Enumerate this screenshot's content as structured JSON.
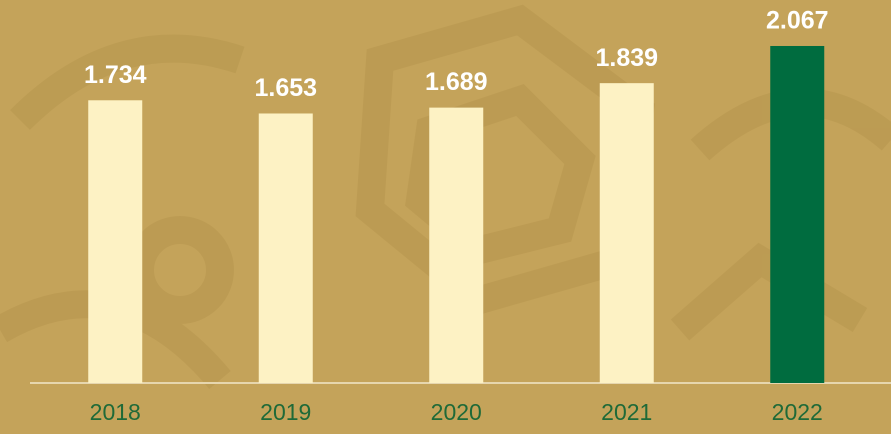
{
  "chart_data": {
    "type": "bar",
    "categories": [
      "2018",
      "2019",
      "2020",
      "2021",
      "2022"
    ],
    "values": [
      1.734,
      1.653,
      1.689,
      1.839,
      2.067
    ],
    "colors": [
      "#fdf2c4",
      "#fdf2c4",
      "#fdf2c4",
      "#fdf2c4",
      "#006c3f"
    ],
    "ylim": [
      0,
      2.3
    ]
  }
}
